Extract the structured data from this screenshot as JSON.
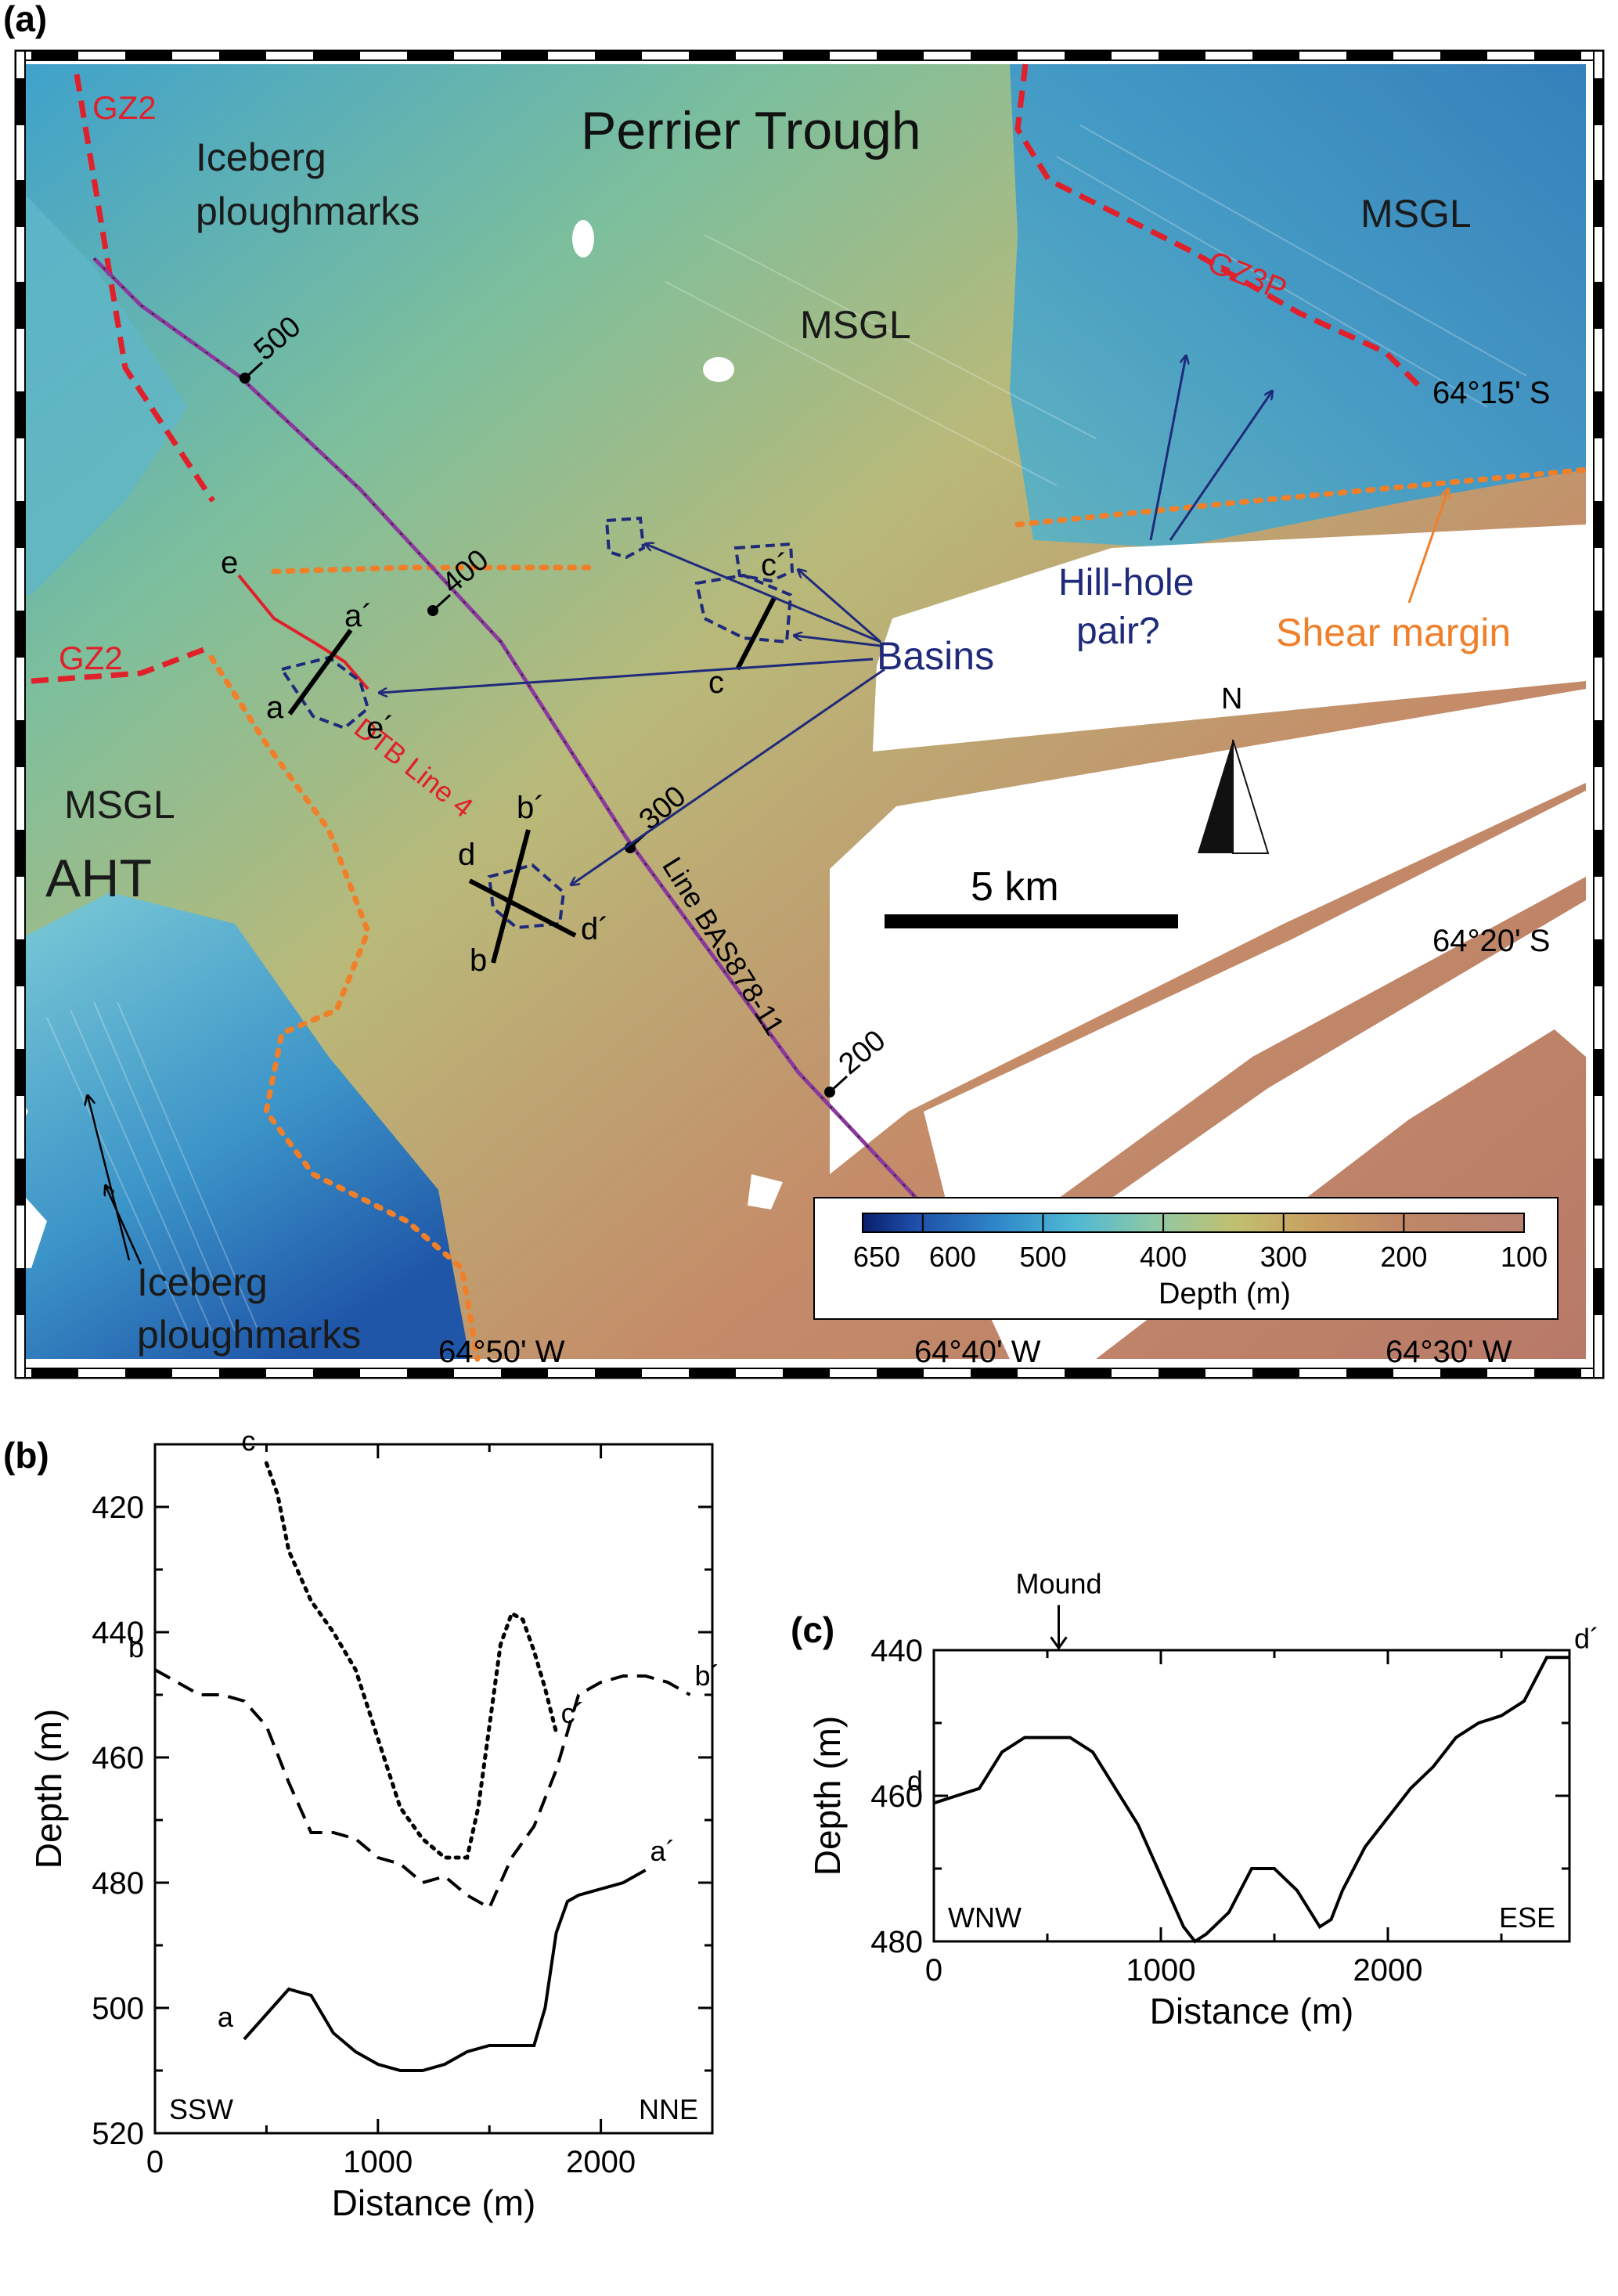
{
  "panels": {
    "a": "(a)",
    "b": "(b)",
    "c": "(c)"
  },
  "map": {
    "title": "Perrier Trough",
    "labels": {
      "gz2_top": "GZ2",
      "gz2_left": "GZ2",
      "gz3p": "GZ3P",
      "iceberg_top": [
        "Iceberg",
        "ploughmarks"
      ],
      "iceberg_bottom": [
        "Iceberg",
        "ploughmarks"
      ],
      "msgl_center": "MSGL",
      "msgl_right": "MSGL",
      "msgl_left": "MSGL",
      "aht": "AHT",
      "basins": "Basins",
      "hillhole": [
        "Hill-hole",
        "pair?"
      ],
      "shear": "Shear margin",
      "dtb": "DTB Line 4",
      "bas": "Line BAS878-11",
      "north": "N",
      "scale": "5 km"
    },
    "shotpoints": [
      "500",
      "400",
      "300",
      "200"
    ],
    "lat_labels": [
      "64°15' S",
      "64°20' S"
    ],
    "lon_labels": [
      "64°50' W",
      "64°40' W",
      "64°30' W"
    ],
    "profile_letters": {
      "a": "a",
      "a_p": "a´",
      "b": "b",
      "b_p": "b´",
      "c": "c",
      "c_p": "c´",
      "d": "d",
      "d_p": "d´",
      "e": "e",
      "e_p": "e´"
    },
    "colorbar": {
      "label": "Depth (m)",
      "ticks": [
        "650",
        "600",
        "500",
        "400",
        "300",
        "200",
        "100"
      ],
      "colors": [
        "#0a1f6e",
        "#1e4fa8",
        "#2f86c8",
        "#4fb8d4",
        "#7ec9b8",
        "#b4c878",
        "#c8b060",
        "#c49060",
        "#b87a64",
        "#b8786a",
        "#b88270"
      ]
    },
    "colors": {
      "gz_line": "#e0202a",
      "shear": "#f07f2a",
      "arrows": "#1f2a7a",
      "seismic_line": "#8a3a9c"
    }
  },
  "chart_data": [
    {
      "type": "line",
      "panel": "b",
      "xlabel": "Distance (m)",
      "ylabel": "Depth (m)",
      "xlim": [
        0,
        2500
      ],
      "ylim": [
        520,
        410
      ],
      "xticks": [
        0,
        1000,
        2000
      ],
      "yticks": [
        420,
        440,
        460,
        480,
        500,
        520
      ],
      "corner_labels": {
        "left": "SSW",
        "right": "NNE"
      },
      "series": [
        {
          "name": "a-a´",
          "style": "solid",
          "start_label": "a",
          "end_label": "a´",
          "x": [
            400,
            500,
            600,
            700,
            800,
            900,
            1000,
            1100,
            1200,
            1300,
            1400,
            1500,
            1600,
            1700,
            1750,
            1800,
            1850,
            1900,
            2000,
            2100,
            2200
          ],
          "y": [
            505,
            501,
            497,
            498,
            504,
            507,
            509,
            510,
            510,
            509,
            507,
            506,
            506,
            506,
            500,
            488,
            483,
            482,
            481,
            480,
            478
          ]
        },
        {
          "name": "b-b´",
          "style": "dashed",
          "start_label": "b",
          "end_label": "b´",
          "x": [
            0,
            100,
            200,
            300,
            400,
            500,
            600,
            700,
            800,
            900,
            1000,
            1100,
            1200,
            1300,
            1400,
            1500,
            1600,
            1700,
            1800,
            1900,
            2000,
            2100,
            2200,
            2300,
            2400
          ],
          "y": [
            446,
            448,
            450,
            450,
            451,
            455,
            464,
            472,
            472,
            473,
            476,
            477,
            480,
            479,
            482,
            484,
            476,
            471,
            462,
            450,
            448,
            447,
            447,
            448,
            450
          ]
        },
        {
          "name": "c-c´",
          "style": "dotted",
          "start_label": "c",
          "end_label": "c´",
          "x": [
            500,
            550,
            600,
            700,
            800,
            900,
            1000,
            1100,
            1200,
            1300,
            1400,
            1450,
            1500,
            1550,
            1600,
            1650,
            1700,
            1750,
            1800
          ],
          "y": [
            413,
            418,
            427,
            435,
            440,
            446,
            457,
            468,
            473,
            476,
            476,
            468,
            455,
            442,
            437,
            438,
            443,
            449,
            456
          ]
        }
      ]
    },
    {
      "type": "line",
      "panel": "c",
      "xlabel": "Distance (m)",
      "ylabel": "Depth (m)",
      "xlim": [
        0,
        2800
      ],
      "ylim": [
        480,
        440
      ],
      "xticks": [
        0,
        1000,
        2000
      ],
      "yticks": [
        440,
        460,
        480
      ],
      "corner_labels": {
        "left": "WNW",
        "right": "ESE"
      },
      "annotation": "Mound",
      "annotation_x": 550,
      "series": [
        {
          "name": "d-d´",
          "style": "solid",
          "start_label": "d",
          "end_label": "d´",
          "x": [
            0,
            100,
            200,
            300,
            400,
            500,
            600,
            700,
            800,
            900,
            1000,
            1100,
            1150,
            1200,
            1300,
            1400,
            1500,
            1600,
            1700,
            1750,
            1800,
            1900,
            2000,
            2100,
            2200,
            2300,
            2400,
            2500,
            2600,
            2700,
            2800
          ],
          "y": [
            461,
            460,
            459,
            454,
            452,
            452,
            452,
            454,
            459,
            464,
            471,
            478,
            480,
            479,
            476,
            470,
            470,
            473,
            478,
            477,
            473,
            467,
            463,
            459,
            456,
            452,
            450,
            449,
            447,
            441,
            441
          ]
        }
      ]
    }
  ]
}
